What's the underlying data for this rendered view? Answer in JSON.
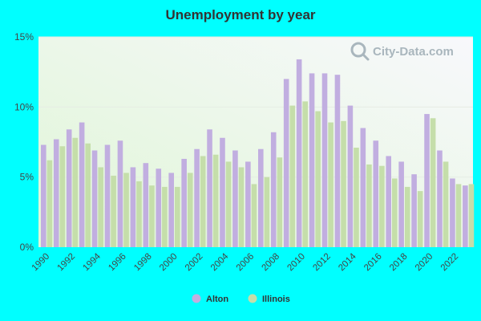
{
  "chart_data": {
    "type": "bar",
    "title": "Unemployment by year",
    "xlabel": "",
    "ylabel": "",
    "ylim": [
      0,
      15
    ],
    "yticks": [
      "0%",
      "5%",
      "10%",
      "15%"
    ],
    "ytick_values": [
      0,
      5,
      10,
      15
    ],
    "categories": [
      "1990",
      "1991",
      "1992",
      "1993",
      "1994",
      "1995",
      "1996",
      "1997",
      "1998",
      "1999",
      "2000",
      "2001",
      "2002",
      "2003",
      "2004",
      "2005",
      "2006",
      "2007",
      "2008",
      "2009",
      "2010",
      "2011",
      "2012",
      "2013",
      "2014",
      "2015",
      "2016",
      "2017",
      "2018",
      "2019",
      "2020",
      "2021",
      "2022",
      "2023"
    ],
    "xtick_labels": [
      "1990",
      "1992",
      "1994",
      "1996",
      "1998",
      "2000",
      "2002",
      "2004",
      "2006",
      "2008",
      "2010",
      "2012",
      "2014",
      "2016",
      "2018",
      "2020",
      "2022"
    ],
    "series": [
      {
        "name": "Alton",
        "color": "#c1aee0",
        "values": [
          7.3,
          7.7,
          8.4,
          8.9,
          6.9,
          7.3,
          7.6,
          5.7,
          6.0,
          5.6,
          5.3,
          6.3,
          7.0,
          8.4,
          7.8,
          6.9,
          6.1,
          7.0,
          8.2,
          12.0,
          13.4,
          12.4,
          12.4,
          12.3,
          10.1,
          8.5,
          7.6,
          6.5,
          6.1,
          5.2,
          9.5,
          6.9,
          4.9,
          4.4
        ]
      },
      {
        "name": "Illinois",
        "color": "#c5deaa",
        "values": [
          6.2,
          7.2,
          7.8,
          7.4,
          5.7,
          5.1,
          5.3,
          4.7,
          4.4,
          4.3,
          4.3,
          5.3,
          6.5,
          6.6,
          6.1,
          5.7,
          4.5,
          5.0,
          6.4,
          10.1,
          10.4,
          9.7,
          8.9,
          9.0,
          7.1,
          5.9,
          5.8,
          4.9,
          4.3,
          4.0,
          9.2,
          6.1,
          4.5,
          4.5
        ]
      }
    ],
    "grid": true,
    "legend_position": "bottom-center"
  },
  "watermark": {
    "text": "City-Data.com",
    "icon": "magnifier-icon"
  },
  "colors": {
    "background": "#00ffff",
    "plot_bg_start": "#e2f7da",
    "plot_bg_end": "#f6f6fb"
  }
}
